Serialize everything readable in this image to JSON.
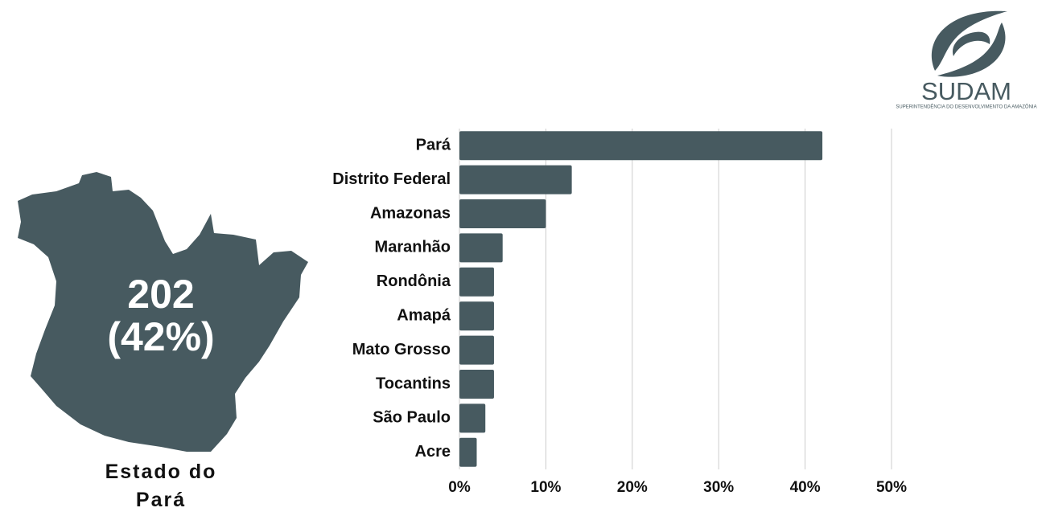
{
  "chart_data": {
    "type": "hbar",
    "categories": [
      "Pará",
      "Distrito Federal",
      "Amazonas",
      "Maranhão",
      "Rondônia",
      "Amapá",
      "Mato Grosso",
      "Tocantins",
      "São Paulo",
      "Acre"
    ],
    "values": [
      42,
      13,
      10,
      5,
      4,
      4,
      4,
      4,
      3,
      2
    ],
    "color": "#475a60",
    "xlim": [
      0,
      50
    ],
    "xticks": [
      {
        "value": 0,
        "label": "0%"
      },
      {
        "value": 10,
        "label": "10%"
      },
      {
        "value": 20,
        "label": "20%"
      },
      {
        "value": 30,
        "label": "30%"
      },
      {
        "value": 40,
        "label": "40%"
      },
      {
        "value": 50,
        "label": "50%"
      }
    ],
    "grid": true
  },
  "callout": {
    "count": "202",
    "share": "(42%)",
    "caption": "Estado do Pará"
  },
  "logo": {
    "name": "SUDAM",
    "subtitle": "SUPERINTENDÊNCIA DO DESENVOLVIMENTO DA AMAZÔNIA"
  }
}
